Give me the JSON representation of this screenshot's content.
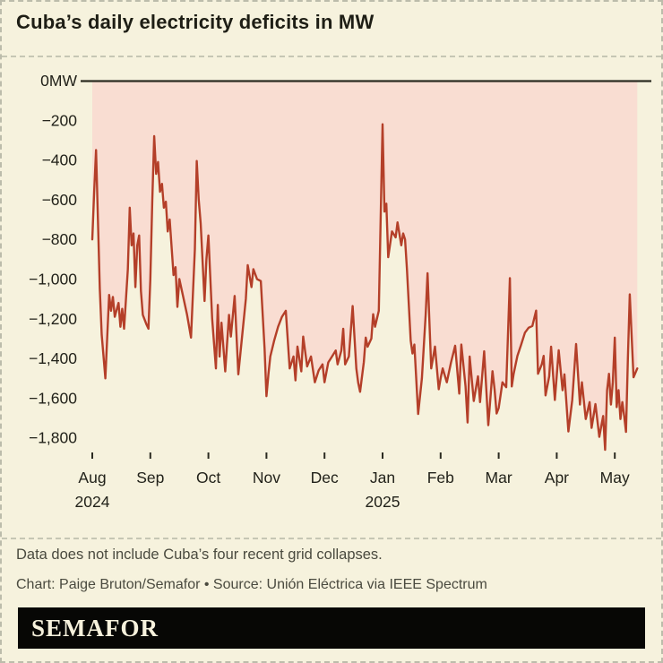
{
  "page": {
    "title": "Cuba’s daily electricity deficits in MW",
    "footnote": "Data does not include Cuba’s four recent grid collapses.",
    "credit": "Chart: Paige Bruton/Semafor • Source: Unión Eléctrica via IEEE Spectrum",
    "brand": "SEMAFOR"
  },
  "colors": {
    "background": "#f6f2dd",
    "deficit_fill": "#f9ddd2",
    "line": "#b43f29",
    "axis": "#2b2b21",
    "label_text": "#22221a",
    "footer_text": "#4a4a3f",
    "brand_bg": "#070705",
    "brand_text": "#f6f1dc"
  },
  "chart_data": {
    "type": "area",
    "title": "Cuba’s daily electricity deficits in MW",
    "unit": "MW",
    "grid": false,
    "fill_between_zero_and_line": true,
    "y_axis": {
      "ylim": [
        -1900,
        0
      ],
      "tick_interval": 200,
      "tick_labels": [
        "0MW",
        "−200",
        "−400",
        "−600",
        "−800",
        "−1,000",
        "−1,200",
        "−1,400",
        "−1,600",
        "−1,800"
      ]
    },
    "x_axis": {
      "months": [
        "Aug",
        "Sep",
        "Oct",
        "Nov",
        "Dec",
        "Jan",
        "Feb",
        "Mar",
        "Apr",
        "May"
      ],
      "year_labels": [
        {
          "month_index": 0,
          "year": "2024"
        },
        {
          "month_index": 5,
          "year": "2025"
        }
      ]
    },
    "series": [
      {
        "name": "Daily electricity deficit",
        "points": [
          [
            "2024-08-01",
            -800
          ],
          [
            "2024-08-02",
            -560
          ],
          [
            "2024-08-03",
            -350
          ],
          [
            "2024-08-04",
            -700
          ],
          [
            "2024-08-05",
            -1050
          ],
          [
            "2024-08-06",
            -1280
          ],
          [
            "2024-08-08",
            -1500
          ],
          [
            "2024-08-10",
            -1080
          ],
          [
            "2024-08-11",
            -1160
          ],
          [
            "2024-08-12",
            -1090
          ],
          [
            "2024-08-13",
            -1190
          ],
          [
            "2024-08-15",
            -1120
          ],
          [
            "2024-08-16",
            -1240
          ],
          [
            "2024-08-17",
            -1150
          ],
          [
            "2024-08-18",
            -1250
          ],
          [
            "2024-08-20",
            -950
          ],
          [
            "2024-08-21",
            -640
          ],
          [
            "2024-08-22",
            -830
          ],
          [
            "2024-08-23",
            -770
          ],
          [
            "2024-08-24",
            -1040
          ],
          [
            "2024-08-25",
            -830
          ],
          [
            "2024-08-26",
            -780
          ],
          [
            "2024-08-27",
            -1060
          ],
          [
            "2024-08-28",
            -1180
          ],
          [
            "2024-08-30",
            -1230
          ],
          [
            "2024-08-31",
            -1250
          ],
          [
            "2024-09-01",
            -1000
          ],
          [
            "2024-09-02",
            -600
          ],
          [
            "2024-09-03",
            -280
          ],
          [
            "2024-09-04",
            -470
          ],
          [
            "2024-09-05",
            -410
          ],
          [
            "2024-09-06",
            -560
          ],
          [
            "2024-09-07",
            -520
          ],
          [
            "2024-09-08",
            -640
          ],
          [
            "2024-09-09",
            -610
          ],
          [
            "2024-09-10",
            -760
          ],
          [
            "2024-09-11",
            -700
          ],
          [
            "2024-09-13",
            -980
          ],
          [
            "2024-09-14",
            -940
          ],
          [
            "2024-09-15",
            -1140
          ],
          [
            "2024-09-16",
            -1000
          ],
          [
            "2024-09-18",
            -1090
          ],
          [
            "2024-09-20",
            -1180
          ],
          [
            "2024-09-22",
            -1295
          ],
          [
            "2024-09-24",
            -850
          ],
          [
            "2024-09-25",
            -405
          ],
          [
            "2024-09-26",
            -600
          ],
          [
            "2024-09-27",
            -720
          ],
          [
            "2024-09-29",
            -1110
          ],
          [
            "2024-09-30",
            -900
          ],
          [
            "2024-10-01",
            -780
          ],
          [
            "2024-10-03",
            -1200
          ],
          [
            "2024-10-05",
            -1450
          ],
          [
            "2024-10-06",
            -1130
          ],
          [
            "2024-10-07",
            -1390
          ],
          [
            "2024-10-08",
            -1220
          ],
          [
            "2024-10-10",
            -1465
          ],
          [
            "2024-10-12",
            -1180
          ],
          [
            "2024-10-13",
            -1290
          ],
          [
            "2024-10-15",
            -1085
          ],
          [
            "2024-10-17",
            -1480
          ],
          [
            "2024-10-19",
            -1290
          ],
          [
            "2024-10-21",
            -1100
          ],
          [
            "2024-10-22",
            -930
          ],
          [
            "2024-10-24",
            -1040
          ],
          [
            "2024-10-25",
            -950
          ],
          [
            "2024-10-27",
            -1000
          ],
          [
            "2024-10-29",
            -1010
          ],
          [
            "2024-10-31",
            -1350
          ],
          [
            "2024-11-01",
            -1590
          ],
          [
            "2024-11-02",
            -1480
          ],
          [
            "2024-11-03",
            -1390
          ],
          [
            "2024-11-05",
            -1310
          ],
          [
            "2024-11-07",
            -1240
          ],
          [
            "2024-11-09",
            -1190
          ],
          [
            "2024-11-11",
            -1160
          ],
          [
            "2024-11-13",
            -1450
          ],
          [
            "2024-11-15",
            -1390
          ],
          [
            "2024-11-16",
            -1510
          ],
          [
            "2024-11-17",
            -1340
          ],
          [
            "2024-11-19",
            -1465
          ],
          [
            "2024-11-20",
            -1290
          ],
          [
            "2024-11-22",
            -1440
          ],
          [
            "2024-11-24",
            -1390
          ],
          [
            "2024-11-26",
            -1520
          ],
          [
            "2024-11-28",
            -1460
          ],
          [
            "2024-11-30",
            -1430
          ],
          [
            "2024-12-01",
            -1520
          ],
          [
            "2024-12-03",
            -1420
          ],
          [
            "2024-12-05",
            -1390
          ],
          [
            "2024-12-07",
            -1360
          ],
          [
            "2024-12-08",
            -1430
          ],
          [
            "2024-12-10",
            -1360
          ],
          [
            "2024-12-11",
            -1250
          ],
          [
            "2024-12-12",
            -1430
          ],
          [
            "2024-12-14",
            -1390
          ],
          [
            "2024-12-16",
            -1136
          ],
          [
            "2024-12-18",
            -1450
          ],
          [
            "2024-12-19",
            -1523
          ],
          [
            "2024-12-20",
            -1568
          ],
          [
            "2024-12-22",
            -1418
          ],
          [
            "2024-12-23",
            -1295
          ],
          [
            "2024-12-24",
            -1341
          ],
          [
            "2024-12-26",
            -1300
          ],
          [
            "2024-12-27",
            -1177
          ],
          [
            "2024-12-28",
            -1240
          ],
          [
            "2024-12-30",
            -1160
          ],
          [
            "2025-01-01",
            -220
          ],
          [
            "2025-01-02",
            -660
          ],
          [
            "2025-01-03",
            -620
          ],
          [
            "2025-01-04",
            -890
          ],
          [
            "2025-01-06",
            -760
          ],
          [
            "2025-01-08",
            -790
          ],
          [
            "2025-01-09",
            -714
          ],
          [
            "2025-01-11",
            -830
          ],
          [
            "2025-01-12",
            -770
          ],
          [
            "2025-01-13",
            -800
          ],
          [
            "2025-01-14",
            -950
          ],
          [
            "2025-01-16",
            -1310
          ],
          [
            "2025-01-17",
            -1375
          ],
          [
            "2025-01-18",
            -1330
          ],
          [
            "2025-01-20",
            -1680
          ],
          [
            "2025-01-22",
            -1500
          ],
          [
            "2025-01-24",
            -1180
          ],
          [
            "2025-01-25",
            -970
          ],
          [
            "2025-01-27",
            -1450
          ],
          [
            "2025-01-29",
            -1340
          ],
          [
            "2025-01-31",
            -1555
          ],
          [
            "2025-02-01",
            -1500
          ],
          [
            "2025-02-02",
            -1450
          ],
          [
            "2025-02-04",
            -1520
          ],
          [
            "2025-02-06",
            -1420
          ],
          [
            "2025-02-08",
            -1336
          ],
          [
            "2025-02-10",
            -1577
          ],
          [
            "2025-02-11",
            -1330
          ],
          [
            "2025-02-13",
            -1540
          ],
          [
            "2025-02-14",
            -1723
          ],
          [
            "2025-02-15",
            -1390
          ],
          [
            "2025-02-17",
            -1614
          ],
          [
            "2025-02-19",
            -1490
          ],
          [
            "2025-02-20",
            -1620
          ],
          [
            "2025-02-22",
            -1364
          ],
          [
            "2025-02-24",
            -1736
          ],
          [
            "2025-02-26",
            -1464
          ],
          [
            "2025-02-27",
            -1555
          ],
          [
            "2025-02-28",
            -1677
          ],
          [
            "2025-03-01",
            -1650
          ],
          [
            "2025-03-03",
            -1520
          ],
          [
            "2025-03-05",
            -1545
          ],
          [
            "2025-03-07",
            -995
          ],
          [
            "2025-03-08",
            -1541
          ],
          [
            "2025-03-09",
            -1477
          ],
          [
            "2025-03-11",
            -1387
          ],
          [
            "2025-03-13",
            -1330
          ],
          [
            "2025-03-15",
            -1270
          ],
          [
            "2025-03-17",
            -1245
          ],
          [
            "2025-03-19",
            -1236
          ],
          [
            "2025-03-21",
            -1159
          ],
          [
            "2025-03-22",
            -1477
          ],
          [
            "2025-03-24",
            -1430
          ],
          [
            "2025-03-25",
            -1387
          ],
          [
            "2025-03-26",
            -1586
          ],
          [
            "2025-03-28",
            -1490
          ],
          [
            "2025-03-29",
            -1341
          ],
          [
            "2025-03-31",
            -1609
          ],
          [
            "2025-04-02",
            -1359
          ],
          [
            "2025-04-04",
            -1560
          ],
          [
            "2025-04-05",
            -1480
          ],
          [
            "2025-04-07",
            -1768
          ],
          [
            "2025-04-09",
            -1610
          ],
          [
            "2025-04-11",
            -1327
          ],
          [
            "2025-04-13",
            -1632
          ],
          [
            "2025-04-14",
            -1520
          ],
          [
            "2025-04-16",
            -1705
          ],
          [
            "2025-04-18",
            -1620
          ],
          [
            "2025-04-19",
            -1750
          ],
          [
            "2025-04-21",
            -1630
          ],
          [
            "2025-04-23",
            -1795
          ],
          [
            "2025-04-25",
            -1690
          ],
          [
            "2025-04-26",
            -1860
          ],
          [
            "2025-04-27",
            -1560
          ],
          [
            "2025-04-28",
            -1477
          ],
          [
            "2025-04-29",
            -1632
          ],
          [
            "2025-04-30",
            -1520
          ],
          [
            "2025-05-01",
            -1295
          ],
          [
            "2025-05-02",
            -1645
          ],
          [
            "2025-05-03",
            -1560
          ],
          [
            "2025-05-04",
            -1705
          ],
          [
            "2025-05-05",
            -1620
          ],
          [
            "2025-05-06",
            -1691
          ],
          [
            "2025-05-07",
            -1770
          ],
          [
            "2025-05-08",
            -1400
          ],
          [
            "2025-05-09",
            -1077
          ],
          [
            "2025-05-11",
            -1495
          ],
          [
            "2025-05-13",
            -1450
          ]
        ]
      }
    ]
  }
}
